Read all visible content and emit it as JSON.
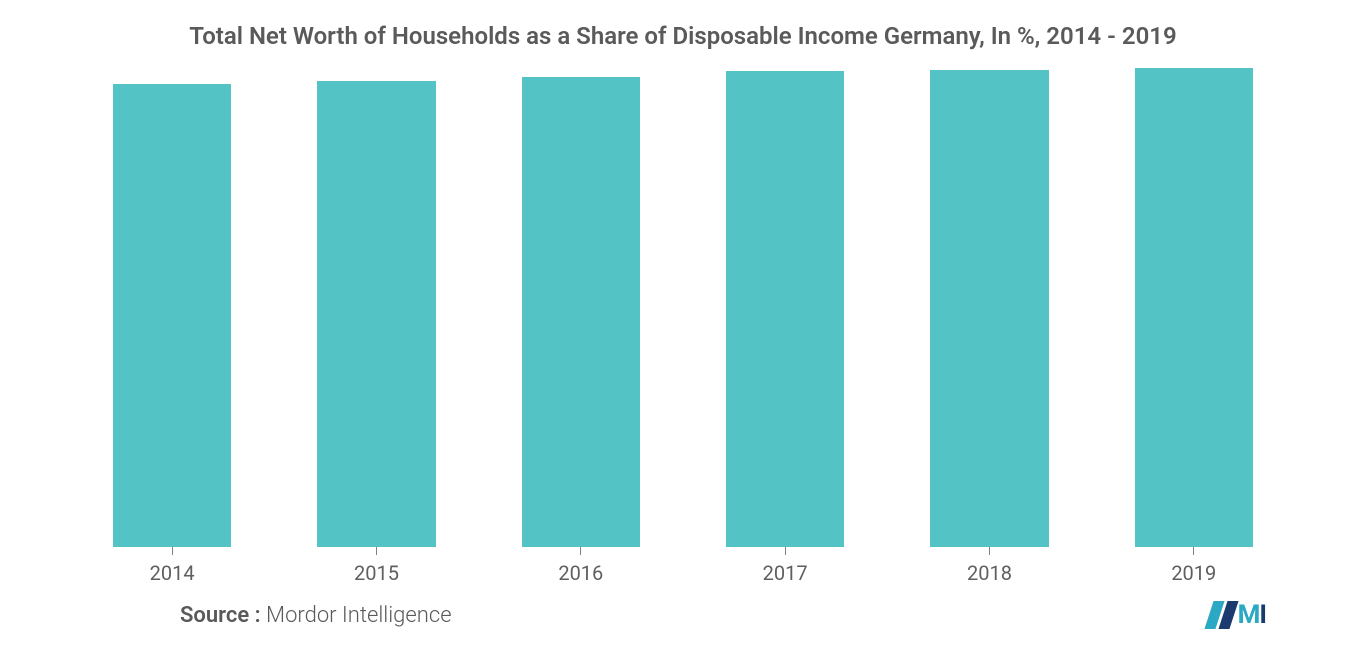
{
  "chart": {
    "type": "bar",
    "title": "Total Net Worth of Households as a Share of Disposable Income Germany, In %, 2014 - 2019",
    "title_fontsize": 24,
    "title_color": "#5a5a5a",
    "categories": [
      "2014",
      "2015",
      "2016",
      "2017",
      "2018",
      "2019"
    ],
    "values": [
      96.5,
      97.2,
      98.0,
      99.3,
      99.5,
      99.8
    ],
    "bar_color": "#53c3c6",
    "background_color": "#ffffff",
    "ylim": [
      0,
      100
    ],
    "bar_width_ratio": 0.58,
    "x_tick_color": "#808080",
    "x_label_fontsize": 20,
    "x_label_color": "#5f5f5f"
  },
  "footer": {
    "source_label": "Source :",
    "source_value": "Mordor Intelligence",
    "source_fontsize": 22,
    "source_color": "#5a5a5a"
  },
  "logo": {
    "bar_color_1": "#2aa8c4",
    "bar_color_2": "#1b3b6f",
    "text_m": "M",
    "text_i": "I",
    "text_color_m": "#2aa8c4",
    "text_color_i": "#1b3b6f"
  }
}
